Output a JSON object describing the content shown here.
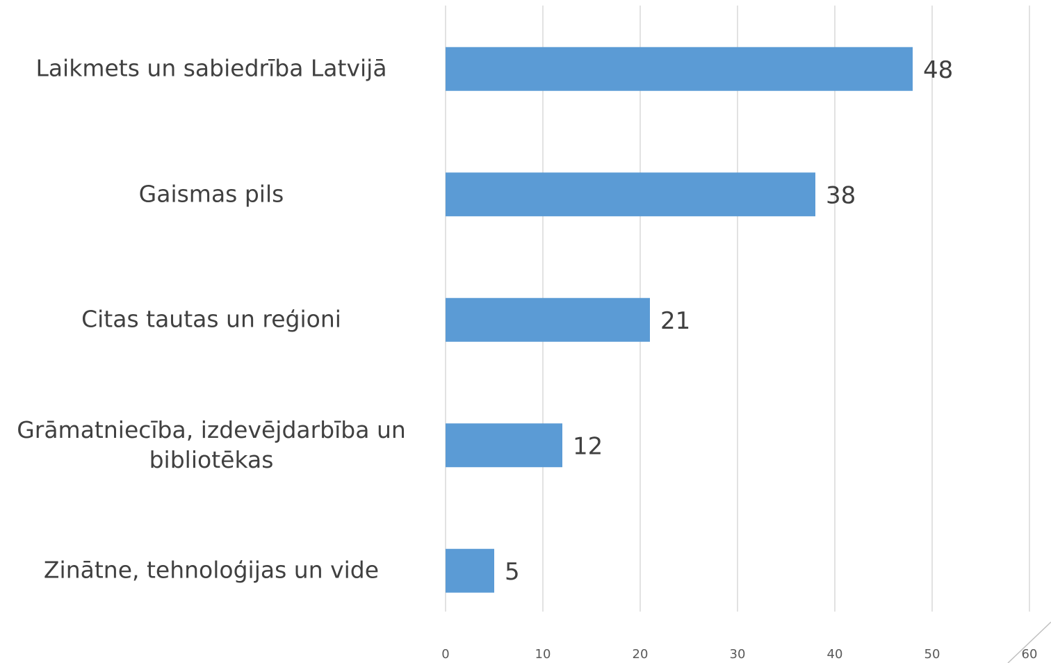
{
  "chart_data": {
    "type": "hbar",
    "categories": [
      "Laikmets un sabiedrība Latvijā",
      "Gaismas pils",
      "Citas tautas un reģioni",
      "Grāmatniecība, izdevējdarbība un bibliotēkas",
      "Zinātne, tehnoloģijas un vide"
    ],
    "values": [
      48,
      38,
      21,
      12,
      5
    ],
    "color": "#5b9bd5",
    "xlim": [
      0,
      60
    ],
    "xticks": [
      0,
      10,
      20,
      30,
      40,
      50,
      60
    ],
    "grid": true
  }
}
